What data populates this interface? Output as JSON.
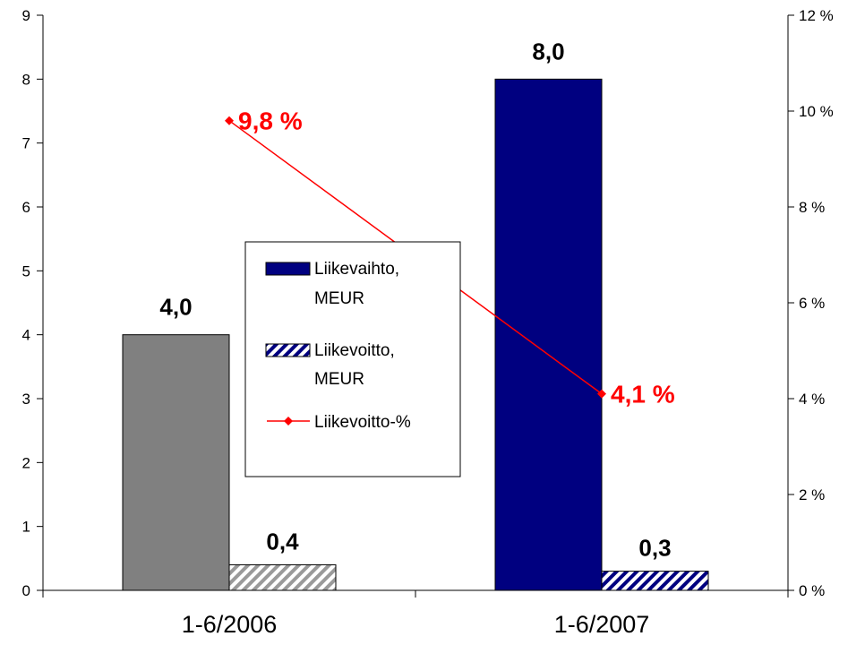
{
  "chart_data": {
    "type": "bar",
    "categories": [
      "1-6/2006",
      "1-6/2007"
    ],
    "series": [
      {
        "name": "Liikevaihto, MEUR",
        "axis": "left",
        "values": [
          4.0,
          8.0
        ],
        "labels": [
          "4,0",
          "8,0"
        ],
        "colors": [
          "#808080",
          "#000080"
        ]
      },
      {
        "name": "Liikevoitto, MEUR",
        "axis": "left",
        "values": [
          0.4,
          0.3
        ],
        "labels": [
          "0,4",
          "0,3"
        ],
        "patterns": [
          "gray-hatch",
          "navy-hatch"
        ]
      },
      {
        "name": "Liikevoitto-%",
        "type": "line",
        "axis": "right",
        "values": [
          9.8,
          4.1
        ],
        "labels": [
          "9,8 %",
          "4,1 %"
        ],
        "color": "#ff0000"
      }
    ],
    "y_left": {
      "ylim": [
        0,
        9
      ],
      "ticks": [
        "0",
        "1",
        "2",
        "3",
        "4",
        "5",
        "6",
        "7",
        "8",
        "9"
      ]
    },
    "y_right": {
      "ylim": [
        0,
        12
      ],
      "ticks": [
        "0 %",
        "2 %",
        "4 %",
        "6 %",
        "8 %",
        "10 %",
        "12 %"
      ]
    },
    "legend": {
      "placement": "center",
      "entries": [
        {
          "lines": [
            "Liikevaihto,",
            "MEUR"
          ]
        },
        {
          "lines": [
            "Liikevoitto,",
            "MEUR"
          ]
        },
        {
          "lines": [
            "Liikevoitto-%"
          ]
        }
      ]
    },
    "colors": {
      "bar_2006": "#808080",
      "bar_2007": "#000080",
      "line": "#ff0000",
      "hatch_gray": "#9a9a9a",
      "hatch_navy": "#000080"
    }
  }
}
